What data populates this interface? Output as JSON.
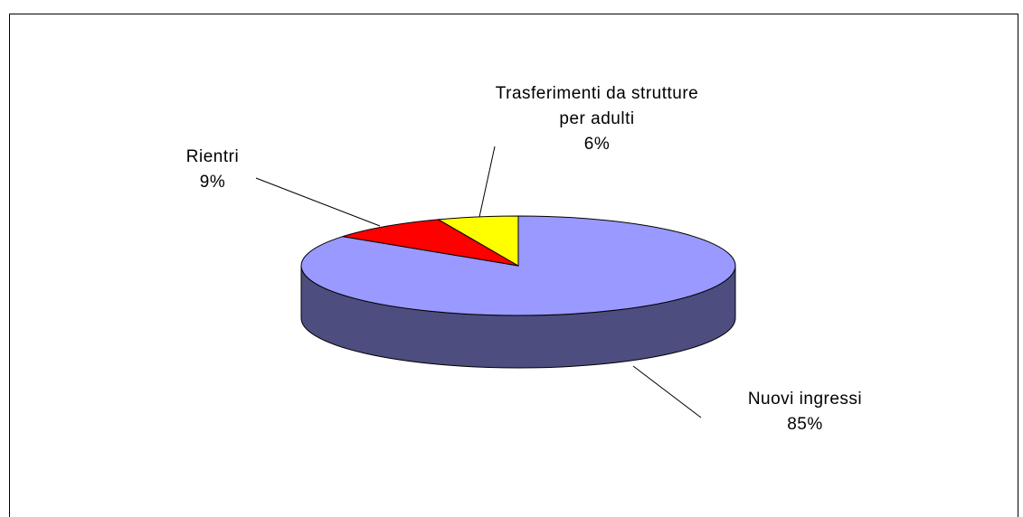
{
  "chart_data": {
    "type": "pie3d",
    "categories": [
      "Nuovi ingressi",
      "Rientri",
      "Trasferimenti da strutture per adulti"
    ],
    "values": [
      85,
      9,
      6
    ],
    "value_labels": [
      "85%",
      "9%",
      "6%"
    ],
    "colors": [
      "#9999ff",
      "#ff0000",
      "#ffff00"
    ]
  }
}
